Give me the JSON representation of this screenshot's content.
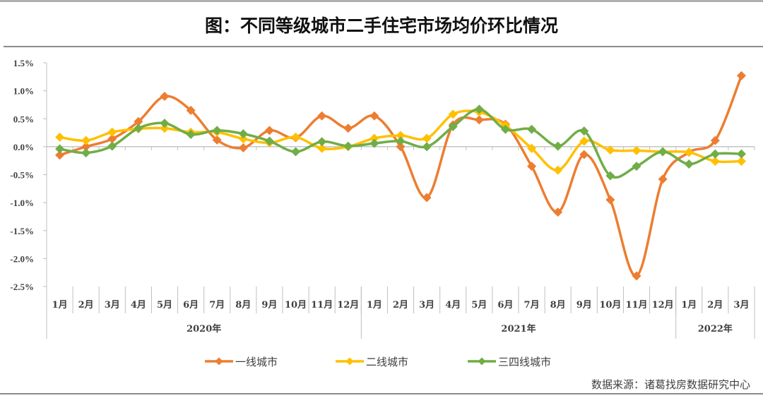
{
  "chart_data": {
    "type": "line",
    "title": "图：不同等级城市二手住宅市场均价环比情况",
    "source": "数据来源：诸葛找房数据研究中心",
    "ylim": [
      -2.5,
      1.5
    ],
    "yticks": [
      "1.5%",
      "1.0%",
      "0.5%",
      "0.0%",
      "-0.5%",
      "-1.0%",
      "-1.5%",
      "-2.0%",
      "-2.5%"
    ],
    "ytick_values": [
      1.5,
      1.0,
      0.5,
      0.0,
      -0.5,
      -1.0,
      -1.5,
      -2.0,
      -2.5
    ],
    "categories": [
      "1月",
      "2月",
      "3月",
      "4月",
      "5月",
      "6月",
      "7月",
      "8月",
      "9月",
      "10月",
      "11月",
      "12月",
      "1月",
      "2月",
      "3月",
      "4月",
      "5月",
      "6月",
      "7月",
      "8月",
      "9月",
      "10月",
      "11月",
      "12月",
      "1月",
      "2月",
      "3月"
    ],
    "year_groups": [
      {
        "label": "2020年",
        "count": 12
      },
      {
        "label": "2021年",
        "count": 12
      },
      {
        "label": "2022年",
        "count": 3
      }
    ],
    "legend_position": "bottom",
    "series": [
      {
        "name": "一线城市",
        "color": "#ED7D31",
        "values": [
          -0.15,
          0.0,
          0.14,
          0.45,
          0.9,
          0.65,
          0.12,
          -0.02,
          0.29,
          0.16,
          0.55,
          0.33,
          0.55,
          0.0,
          -0.91,
          0.39,
          0.48,
          0.4,
          -0.35,
          -1.17,
          -0.14,
          -0.95,
          -2.31,
          -0.58,
          -0.1,
          0.11,
          1.27
        ]
      },
      {
        "name": "二线城市",
        "color": "#FFC000",
        "values": [
          0.17,
          0.11,
          0.26,
          0.32,
          0.33,
          0.26,
          0.26,
          0.14,
          0.07,
          0.17,
          -0.03,
          0.0,
          0.15,
          0.2,
          0.15,
          0.58,
          0.62,
          0.38,
          -0.03,
          -0.42,
          0.1,
          -0.06,
          -0.07,
          -0.09,
          -0.1,
          -0.26,
          -0.26
        ]
      },
      {
        "name": "三四线城市",
        "color": "#70AD47",
        "values": [
          -0.04,
          -0.11,
          0.01,
          0.33,
          0.42,
          0.22,
          0.29,
          0.23,
          0.1,
          -0.09,
          0.09,
          0.01,
          0.06,
          0.1,
          0.0,
          0.36,
          0.67,
          0.31,
          0.31,
          0.01,
          0.28,
          -0.52,
          -0.35,
          -0.09,
          -0.31,
          -0.13,
          -0.13
        ]
      }
    ]
  }
}
